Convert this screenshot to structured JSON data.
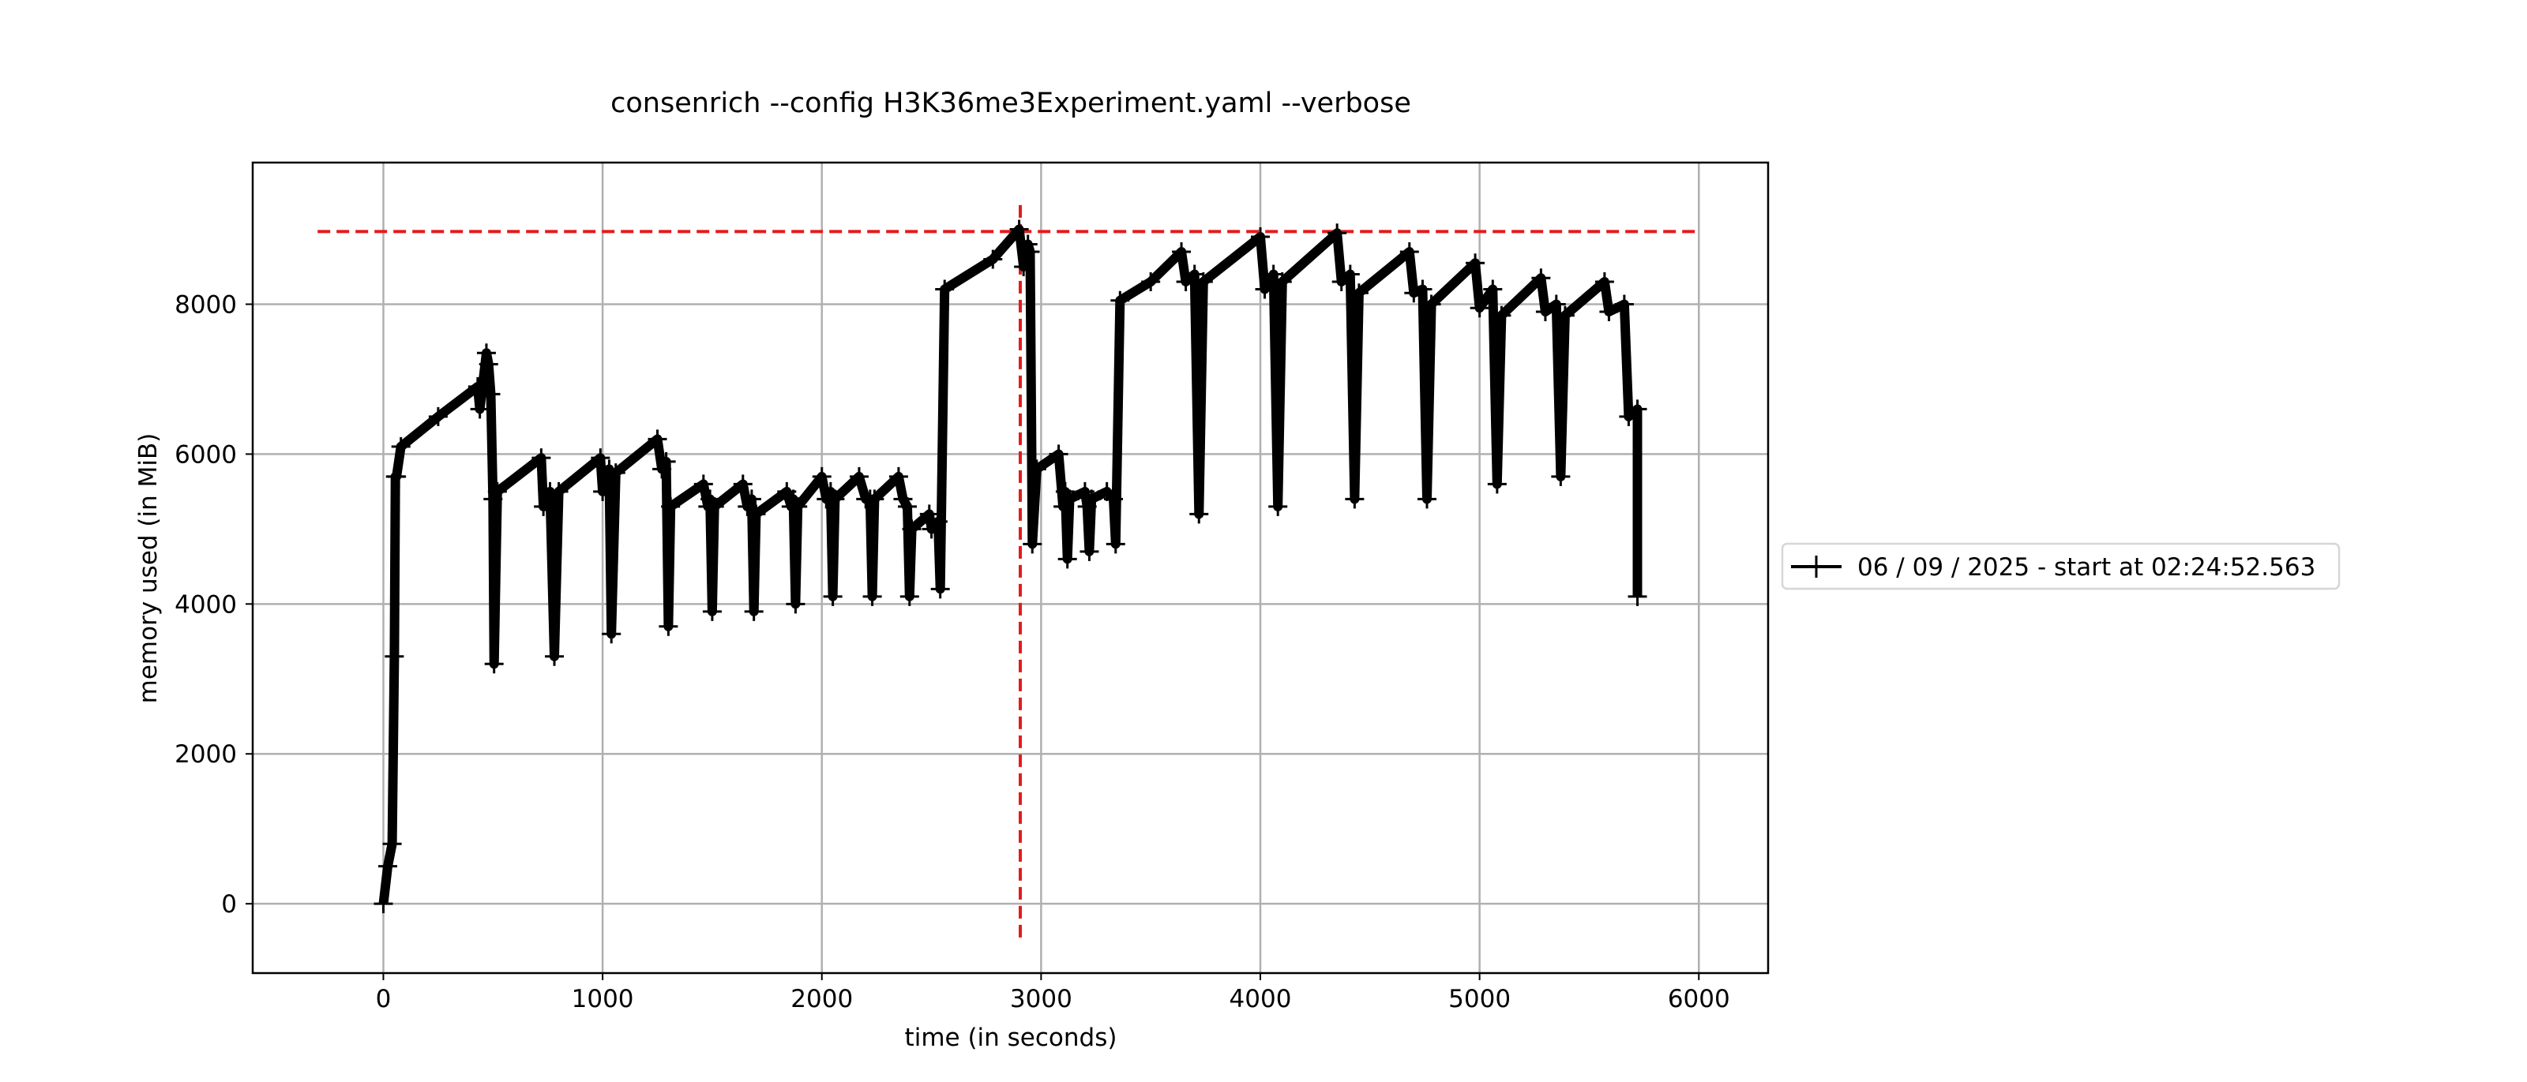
{
  "chart_data": {
    "type": "line",
    "title": "consenrich --config H3K36me3Experiment.yaml --verbose",
    "xlabel": "time (in seconds)",
    "ylabel": "memory used (in MiB)",
    "xlim": [
      -596,
      6316
    ],
    "ylim": [
      -925,
      9890
    ],
    "xticks": [
      0,
      1000,
      2000,
      3000,
      4000,
      5000,
      6000
    ],
    "yticks": [
      0,
      2000,
      4000,
      6000,
      8000
    ],
    "xtick_labels": [
      "0",
      "1000",
      "2000",
      "3000",
      "4000",
      "5000",
      "6000"
    ],
    "ytick_labels": [
      "0",
      "2000",
      "4000",
      "6000",
      "8000"
    ],
    "grid": true,
    "legend": {
      "placement": "right",
      "entries": [
        "06 / 09 / 2025 - start at 02:24:52.563"
      ]
    },
    "colors": {
      "series": "#000000",
      "peak": "#e41a1c",
      "grid": "#b0b0b0"
    },
    "peak_lines": {
      "max_memory": 8970,
      "max_memory_x_range": [
        -300,
        6000
      ],
      "time_at_max": 2905,
      "time_at_max_y_range": [
        -450,
        9400
      ]
    },
    "series": [
      {
        "name": "06 / 09 / 2025 - start at 02:24:52.563",
        "x": [
          0,
          20,
          40,
          50,
          55,
          60,
          80,
          250,
          430,
          440,
          470,
          480,
          490,
          500,
          505,
          520,
          720,
          730,
          760,
          780,
          800,
          990,
          1000,
          1030,
          1040,
          1060,
          1250,
          1270,
          1290,
          1300,
          1310,
          1460,
          1480,
          1490,
          1500,
          1510,
          1640,
          1660,
          1680,
          1690,
          1700,
          1840,
          1860,
          1870,
          1880,
          1890,
          2000,
          2020,
          2040,
          2050,
          2060,
          2170,
          2200,
          2220,
          2230,
          2240,
          2350,
          2370,
          2390,
          2400,
          2410,
          2490,
          2500,
          2530,
          2540,
          2560,
          2780,
          2900,
          2920,
          2940,
          2950,
          2960,
          2980,
          3080,
          3100,
          3110,
          3120,
          3130,
          3200,
          3210,
          3220,
          3230,
          3300,
          3330,
          3340,
          3360,
          3500,
          3640,
          3660,
          3700,
          3720,
          3740,
          4000,
          4020,
          4060,
          4080,
          4100,
          4350,
          4370,
          4410,
          4430,
          4450,
          4680,
          4700,
          4740,
          4760,
          4780,
          4980,
          5000,
          5060,
          5080,
          5100,
          5280,
          5300,
          5350,
          5370,
          5390,
          5570,
          5590,
          5660,
          5680,
          5720,
          5720
        ],
        "y": [
          0,
          500,
          800,
          3300,
          5700,
          5700,
          6100,
          6500,
          6900,
          6600,
          7350,
          7200,
          6800,
          5400,
          3200,
          5500,
          5950,
          5300,
          5500,
          3300,
          5500,
          5950,
          5500,
          5800,
          3600,
          5750,
          6200,
          5800,
          5900,
          3700,
          5300,
          5600,
          5300,
          5400,
          3900,
          5300,
          5600,
          5300,
          5400,
          3900,
          5200,
          5500,
          5300,
          5400,
          4000,
          5300,
          5700,
          5400,
          5500,
          4100,
          5400,
          5700,
          5400,
          5400,
          4100,
          5400,
          5700,
          5400,
          5300,
          4100,
          5000,
          5200,
          5000,
          5100,
          4200,
          8200,
          8600,
          9000,
          8500,
          8800,
          8700,
          4800,
          5800,
          6000,
          5300,
          5500,
          4600,
          5400,
          5500,
          5300,
          4700,
          5400,
          5500,
          5400,
          4800,
          8050,
          8300,
          8700,
          8300,
          8400,
          5200,
          8300,
          8900,
          8200,
          8400,
          5300,
          8300,
          8950,
          8300,
          8400,
          5400,
          8150,
          8700,
          8150,
          8200,
          5400,
          8000,
          8550,
          7950,
          8200,
          5600,
          7850,
          8350,
          7900,
          8000,
          5700,
          7850,
          8300,
          7900,
          8000,
          6500,
          6600,
          4100
        ]
      }
    ]
  }
}
